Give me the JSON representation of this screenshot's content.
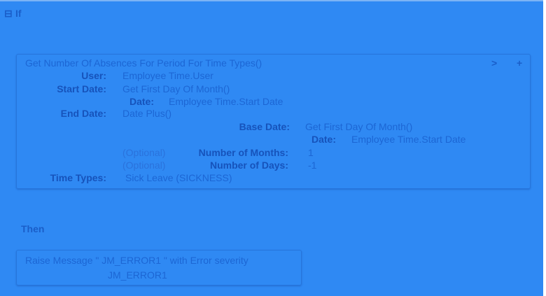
{
  "if_block": {
    "collapse_icon": "minus-square-icon",
    "title": "If",
    "function_name": "Get Number Of Absences For Period For Time Types()",
    "expand_icon": "chevron-right-icon",
    "add_icon": "plus-icon",
    "params": {
      "user_label": "User:",
      "user_value": "Employee Time.User",
      "start_date_label": "Start Date:",
      "start_date_value": "Get First Day Of Month()",
      "start_date_sub_label": "Date:",
      "start_date_sub_value": "Employee Time.Start Date",
      "end_date_label": "End Date:",
      "end_date_value": "Date Plus()",
      "base_date_label": "Base Date:",
      "base_date_value": "Get First Day Of Month()",
      "base_date_sub_label": "Date:",
      "base_date_sub_value": "Employee Time.Start Date",
      "optional_1": "(Optional)",
      "months_label": "Number of Months:",
      "months_value": "1",
      "optional_2": "(Optional)",
      "days_label": "Number of Days:",
      "days_value": "-1",
      "time_types_label": "Time Types:",
      "time_types_value": "Sick Leave (SICKNESS)"
    }
  },
  "then_block": {
    "title": "Then",
    "action_line1": "Raise Message \" JM_ERROR1 \" with Error severity",
    "action_line2": "JM_ERROR1"
  }
}
